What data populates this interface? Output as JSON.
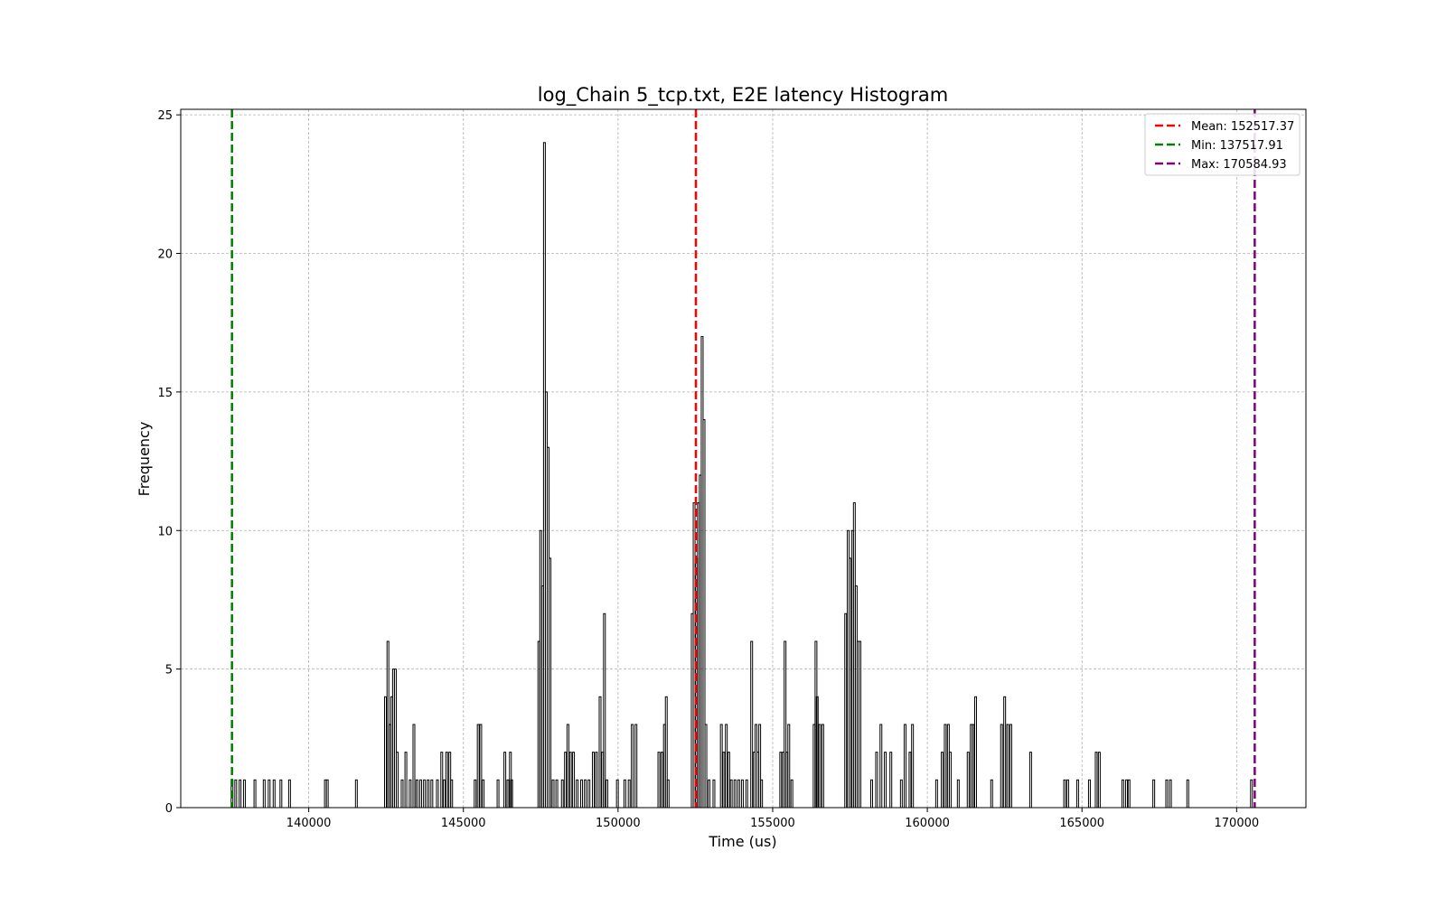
{
  "chart_data": {
    "type": "bar",
    "title": "log_Chain 5_tcp.txt, E2E latency Histogram",
    "xlabel": "Time (us)",
    "ylabel": "Frequency",
    "xlim": [
      135862,
      172240
    ],
    "ylim": [
      0,
      25.2
    ],
    "xticks": [
      140000,
      145000,
      150000,
      155000,
      160000,
      165000,
      170000
    ],
    "yticks": [
      0,
      5,
      10,
      15,
      20,
      25
    ],
    "grid": true,
    "grid_style": "dashed",
    "bar_color": "#000000",
    "legend_placement": "top-right",
    "reference_lines": [
      {
        "label": "Mean: 152517.37",
        "value": 152517.37,
        "color": "#ff0000",
        "style": "dashed"
      },
      {
        "label": "Min: 137517.91",
        "value": 137517.91,
        "color": "#008000",
        "style": "dashed"
      },
      {
        "label": "Max: 170584.93",
        "value": 170584.93,
        "color": "#800080",
        "style": "dashed"
      }
    ],
    "bars": [
      [
        137520,
        1
      ],
      [
        137640,
        1
      ],
      [
        137780,
        1
      ],
      [
        137920,
        1
      ],
      [
        138260,
        1
      ],
      [
        138560,
        1
      ],
      [
        138720,
        1
      ],
      [
        138880,
        1
      ],
      [
        139100,
        1
      ],
      [
        139380,
        1
      ],
      [
        140540,
        1
      ],
      [
        140600,
        1
      ],
      [
        141540,
        1
      ],
      [
        142480,
        4
      ],
      [
        142560,
        6
      ],
      [
        142620,
        3
      ],
      [
        142680,
        4
      ],
      [
        142740,
        5
      ],
      [
        142800,
        5
      ],
      [
        142860,
        2
      ],
      [
        143020,
        1
      ],
      [
        143140,
        2
      ],
      [
        143280,
        1
      ],
      [
        143400,
        3
      ],
      [
        143500,
        1
      ],
      [
        143620,
        1
      ],
      [
        143740,
        1
      ],
      [
        143860,
        1
      ],
      [
        143980,
        1
      ],
      [
        144160,
        1
      ],
      [
        144300,
        2
      ],
      [
        144380,
        1
      ],
      [
        144460,
        2
      ],
      [
        144560,
        2
      ],
      [
        144620,
        1
      ],
      [
        145380,
        1
      ],
      [
        145480,
        3
      ],
      [
        145560,
        3
      ],
      [
        145640,
        1
      ],
      [
        146120,
        1
      ],
      [
        146340,
        2
      ],
      [
        146440,
        1
      ],
      [
        146520,
        2
      ],
      [
        146560,
        1
      ],
      [
        147440,
        6
      ],
      [
        147500,
        10
      ],
      [
        147560,
        8
      ],
      [
        147620,
        24
      ],
      [
        147680,
        15
      ],
      [
        147740,
        13
      ],
      [
        147800,
        9
      ],
      [
        147900,
        1
      ],
      [
        148020,
        1
      ],
      [
        148200,
        1
      ],
      [
        148300,
        2
      ],
      [
        148380,
        3
      ],
      [
        148460,
        2
      ],
      [
        148560,
        2
      ],
      [
        148680,
        1
      ],
      [
        148820,
        1
      ],
      [
        148940,
        1
      ],
      [
        149060,
        1
      ],
      [
        149200,
        2
      ],
      [
        149300,
        2
      ],
      [
        149420,
        4
      ],
      [
        149500,
        2
      ],
      [
        149560,
        7
      ],
      [
        149640,
        1
      ],
      [
        149980,
        1
      ],
      [
        150220,
        1
      ],
      [
        150360,
        1
      ],
      [
        150460,
        3
      ],
      [
        150580,
        3
      ],
      [
        151320,
        2
      ],
      [
        151420,
        2
      ],
      [
        151500,
        3
      ],
      [
        151560,
        4
      ],
      [
        151620,
        1
      ],
      [
        152400,
        7
      ],
      [
        152460,
        11
      ],
      [
        152540,
        9
      ],
      [
        152600,
        11
      ],
      [
        152660,
        12
      ],
      [
        152720,
        17
      ],
      [
        152780,
        14
      ],
      [
        152840,
        3
      ],
      [
        152940,
        1
      ],
      [
        153100,
        1
      ],
      [
        153340,
        3
      ],
      [
        153420,
        2
      ],
      [
        153500,
        3
      ],
      [
        153580,
        2
      ],
      [
        153660,
        1
      ],
      [
        153780,
        1
      ],
      [
        153900,
        1
      ],
      [
        154020,
        1
      ],
      [
        154160,
        1
      ],
      [
        154320,
        6
      ],
      [
        154400,
        2
      ],
      [
        154460,
        3
      ],
      [
        154520,
        2
      ],
      [
        154580,
        3
      ],
      [
        154640,
        1
      ],
      [
        155260,
        2
      ],
      [
        155340,
        2
      ],
      [
        155400,
        6
      ],
      [
        155460,
        2
      ],
      [
        155520,
        3
      ],
      [
        155620,
        1
      ],
      [
        156340,
        3
      ],
      [
        156400,
        6
      ],
      [
        156440,
        4
      ],
      [
        156520,
        3
      ],
      [
        156620,
        3
      ],
      [
        157360,
        7
      ],
      [
        157440,
        10
      ],
      [
        157500,
        9
      ],
      [
        157580,
        10
      ],
      [
        157640,
        11
      ],
      [
        157700,
        8
      ],
      [
        157760,
        6
      ],
      [
        157820,
        6
      ],
      [
        158200,
        1
      ],
      [
        158360,
        2
      ],
      [
        158500,
        3
      ],
      [
        158640,
        2
      ],
      [
        158820,
        2
      ],
      [
        159160,
        1
      ],
      [
        159280,
        3
      ],
      [
        159440,
        2
      ],
      [
        159520,
        3
      ],
      [
        160300,
        1
      ],
      [
        160480,
        2
      ],
      [
        160580,
        3
      ],
      [
        160680,
        3
      ],
      [
        160740,
        2
      ],
      [
        161000,
        1
      ],
      [
        161320,
        2
      ],
      [
        161420,
        3
      ],
      [
        161480,
        3
      ],
      [
        161560,
        4
      ],
      [
        162080,
        1
      ],
      [
        162400,
        3
      ],
      [
        162500,
        4
      ],
      [
        162600,
        3
      ],
      [
        162700,
        3
      ],
      [
        163340,
        2
      ],
      [
        164440,
        1
      ],
      [
        164540,
        1
      ],
      [
        164860,
        1
      ],
      [
        165240,
        1
      ],
      [
        165460,
        2
      ],
      [
        165560,
        2
      ],
      [
        166320,
        1
      ],
      [
        166440,
        1
      ],
      [
        166520,
        1
      ],
      [
        167320,
        1
      ],
      [
        167740,
        1
      ],
      [
        167860,
        1
      ],
      [
        168420,
        1
      ],
      [
        170480,
        1
      ]
    ]
  }
}
